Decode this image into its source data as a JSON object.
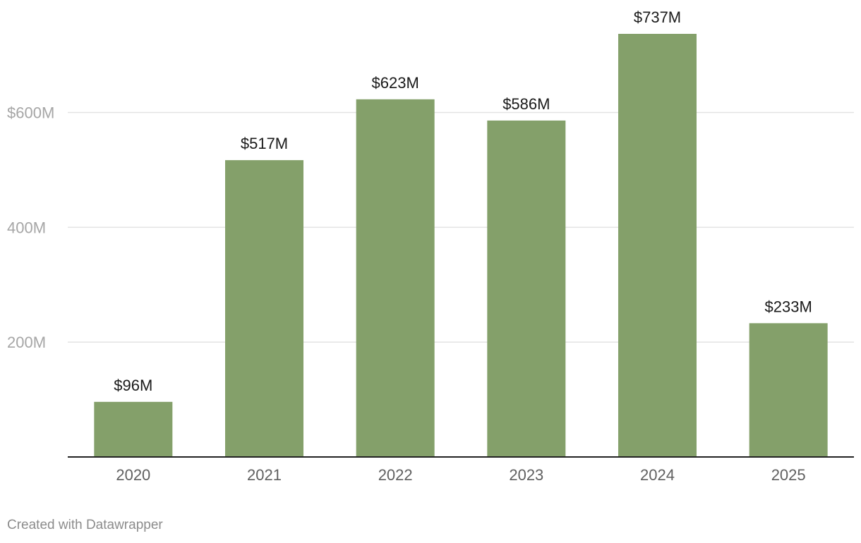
{
  "chart_data": {
    "type": "bar",
    "title": "",
    "xlabel": "",
    "ylabel": "",
    "categories": [
      "2020",
      "2021",
      "2022",
      "2023",
      "2024",
      "2025"
    ],
    "values": [
      96,
      517,
      623,
      586,
      737,
      233
    ],
    "value_labels": [
      "$96M",
      "$517M",
      "$623M",
      "$586M",
      "$737M",
      "$233M"
    ],
    "ylim": [
      0,
      737
    ],
    "y_ticks": [
      200,
      400,
      600
    ],
    "y_tick_labels": [
      "200M",
      "400M",
      "$600M"
    ],
    "grid": true,
    "bar_color": "#84a06a"
  },
  "footer": {
    "credit": "Created with Datawrapper"
  }
}
